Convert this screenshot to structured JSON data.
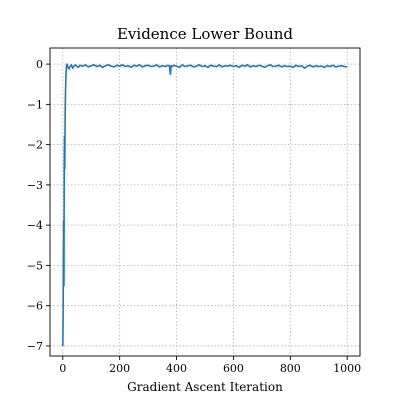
{
  "chart_data": {
    "type": "line",
    "title": "Evidence Lower Bound",
    "xlabel": "Gradient Ascent Iteration",
    "ylabel": "",
    "xlim": [
      -45,
      1045
    ],
    "ylim": [
      -7.25,
      0.4
    ],
    "grid": true,
    "legend": "none",
    "x_ticks": [
      0,
      200,
      400,
      600,
      800,
      1000
    ],
    "y_ticks": [
      0,
      -1,
      -2,
      -3,
      -4,
      -5,
      -6,
      -7
    ],
    "x_tick_labels": [
      "0",
      "200",
      "400",
      "600",
      "800",
      "1000"
    ],
    "y_tick_labels": [
      "0",
      "−1",
      "−2",
      "−3",
      "−4",
      "−5",
      "−6",
      "−7"
    ],
    "series": [
      {
        "name": "",
        "color": "#1f77b4",
        "x": [
          0,
          1,
          2,
          3,
          4,
          5,
          6,
          7,
          8,
          9,
          10,
          11,
          12,
          13,
          15,
          18,
          22,
          26,
          30,
          35,
          40,
          45,
          50,
          55,
          60,
          70,
          80,
          90,
          100,
          110,
          120,
          130,
          140,
          150,
          160,
          170,
          180,
          190,
          200,
          210,
          220,
          230,
          240,
          250,
          260,
          270,
          280,
          290,
          300,
          310,
          320,
          330,
          340,
          350,
          360,
          370,
          375,
          378,
          381,
          385,
          390,
          400,
          410,
          420,
          430,
          440,
          450,
          460,
          470,
          480,
          490,
          500,
          510,
          520,
          530,
          540,
          550,
          560,
          570,
          580,
          590,
          600,
          610,
          620,
          630,
          640,
          650,
          660,
          670,
          680,
          690,
          700,
          710,
          720,
          730,
          740,
          750,
          760,
          770,
          780,
          790,
          800,
          810,
          820,
          830,
          840,
          850,
          860,
          870,
          880,
          890,
          900,
          910,
          920,
          930,
          940,
          950,
          960,
          970,
          980,
          990,
          1000
        ],
        "y": [
          -7.0,
          -6.4,
          -5.0,
          -3.9,
          -5.5,
          -2.5,
          -1.8,
          -2.6,
          -1.5,
          -0.9,
          -0.55,
          -0.3,
          -0.15,
          -0.05,
          0.0,
          -0.08,
          -0.12,
          -0.05,
          -0.02,
          -0.1,
          -0.04,
          -0.02,
          -0.06,
          -0.08,
          -0.03,
          -0.05,
          -0.02,
          -0.07,
          -0.04,
          -0.02,
          -0.06,
          -0.03,
          -0.08,
          -0.04,
          -0.02,
          -0.05,
          -0.07,
          -0.03,
          -0.05,
          -0.02,
          -0.06,
          -0.04,
          -0.08,
          -0.03,
          -0.05,
          -0.02,
          -0.07,
          -0.04,
          -0.03,
          -0.06,
          -0.05,
          -0.02,
          -0.07,
          -0.04,
          -0.06,
          -0.03,
          -0.05,
          -0.25,
          -0.04,
          -0.06,
          -0.03,
          -0.05,
          -0.08,
          -0.02,
          -0.06,
          -0.04,
          -0.03,
          -0.07,
          -0.05,
          -0.02,
          -0.06,
          -0.04,
          -0.08,
          -0.03,
          -0.05,
          -0.06,
          -0.02,
          -0.07,
          -0.04,
          -0.05,
          -0.03,
          -0.06,
          -0.04,
          -0.08,
          -0.03,
          -0.05,
          -0.02,
          -0.07,
          -0.04,
          -0.06,
          -0.03,
          -0.05,
          -0.08,
          -0.04,
          -0.02,
          -0.06,
          -0.05,
          -0.03,
          -0.07,
          -0.04,
          -0.06,
          -0.05,
          -0.08,
          -0.03,
          -0.06,
          -0.04,
          -0.1,
          -0.05,
          -0.03,
          -0.07,
          -0.04,
          -0.06,
          -0.05,
          -0.08,
          -0.04,
          -0.06,
          -0.03,
          -0.07,
          -0.05,
          -0.04,
          -0.06,
          -0.07
        ]
      }
    ]
  }
}
